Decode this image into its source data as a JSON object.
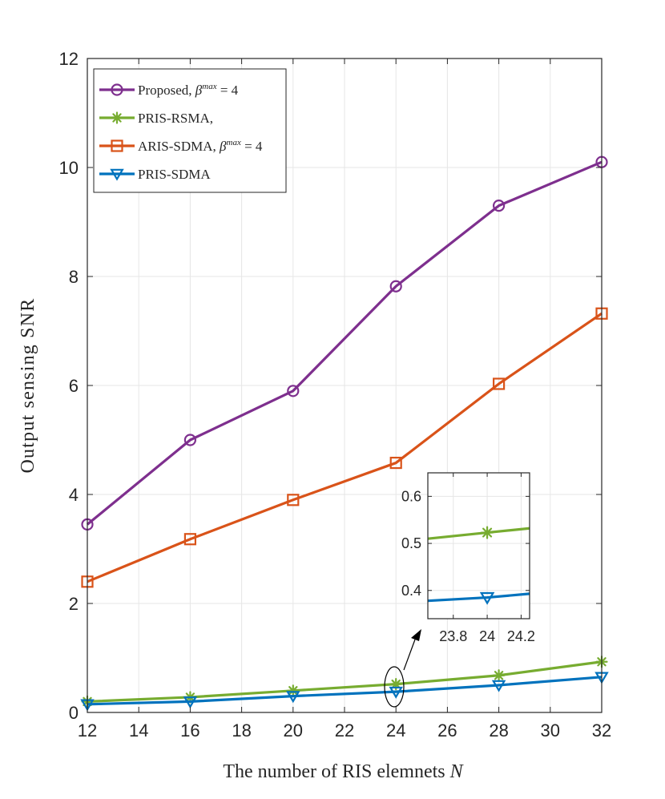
{
  "chart_data": {
    "type": "line",
    "title": "",
    "xlabel": "The number of RIS elemnets ",
    "xlabel_var": "N",
    "ylabel": "Output sensing SNR",
    "xlim": [
      12,
      32
    ],
    "ylim": [
      0,
      12
    ],
    "grid": true,
    "x": [
      12,
      16,
      20,
      24,
      28,
      32
    ],
    "xticks": [
      "12",
      "14",
      "16",
      "18",
      "20",
      "22",
      "24",
      "26",
      "28",
      "30",
      "32"
    ],
    "yticks": [
      "0",
      "2",
      "4",
      "6",
      "8",
      "10",
      "12"
    ],
    "legend_position": "top-left",
    "series": [
      {
        "name": "Proposed, ",
        "beta_sup": "max",
        "beta_eq": " = 4",
        "color": "#7E2F8E",
        "marker": "circle",
        "values": [
          3.45,
          5.0,
          5.9,
          7.82,
          9.3,
          10.1
        ]
      },
      {
        "name": "PRIS-RSMA,",
        "color": "#77AC30",
        "marker": "star",
        "values": [
          0.2,
          0.28,
          0.4,
          0.52,
          0.68,
          0.93
        ]
      },
      {
        "name": "ARIS-SDMA, ",
        "beta_sup": "max",
        "beta_eq": " = 4",
        "color": "#D95319",
        "marker": "square",
        "values": [
          2.4,
          3.18,
          3.9,
          4.58,
          6.03,
          7.32
        ]
      },
      {
        "name": "PRIS-SDMA",
        "color": "#0072BD",
        "marker": "triangle-down",
        "values": [
          0.15,
          0.2,
          0.3,
          0.38,
          0.5,
          0.65
        ]
      }
    ],
    "inset": {
      "xlim": [
        23.65,
        24.25
      ],
      "ylim": [
        0.34,
        0.65
      ],
      "xticks": [
        "23.8",
        "24",
        "24.2"
      ],
      "yticks": [
        "0.4",
        "0.5",
        "0.6"
      ],
      "zoom_center": [
        24,
        0.45
      ],
      "series": [
        {
          "name": "PRIS-RSMA",
          "color": "#77AC30",
          "marker": "star",
          "x": [
            23.65,
            24,
            24.25
          ],
          "values": [
            0.51,
            0.523,
            0.532
          ]
        },
        {
          "name": "PRIS-SDMA",
          "color": "#0072BD",
          "marker": "triangle-down",
          "x": [
            23.65,
            24,
            24.25
          ],
          "values": [
            0.378,
            0.385,
            0.393
          ]
        }
      ]
    }
  }
}
